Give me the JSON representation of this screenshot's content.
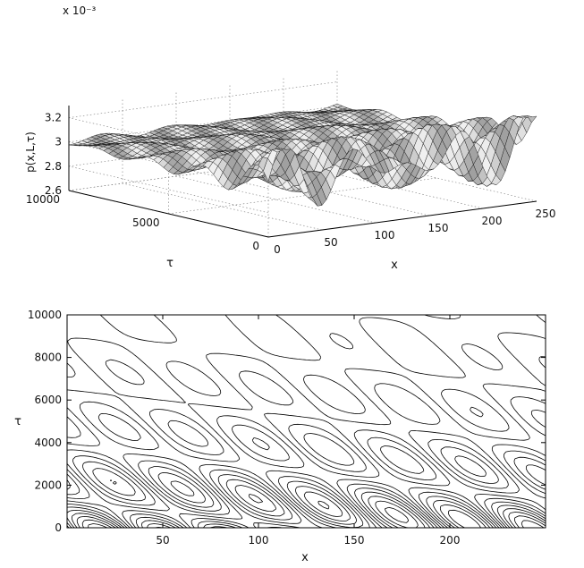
{
  "chart_data": [
    {
      "type": "surface",
      "panel": "top",
      "title": "",
      "zlabel": "p(x,L,τ)",
      "xlabel": "x",
      "ylabel": "τ",
      "scale_note": "x 10⁻³",
      "xticks": [
        "0",
        "50",
        "100",
        "150",
        "200",
        "250"
      ],
      "yticks": [
        "0",
        "5000",
        "10000"
      ],
      "zticks": [
        "2.6",
        "2.8",
        "3",
        "3.2"
      ],
      "xlim": [
        0,
        250
      ],
      "ylim": [
        0,
        10000
      ],
      "zlim": [
        2.6,
        3.3
      ],
      "z_scale": 0.001,
      "surface_description": "3D mesh that is nearly flat around 3.1e-3 at large tau and develops oscillations in x (period about 65) that grow as tau decreases, reaching roughly 2.6e-3 to 3.3e-3 near tau = 0"
    },
    {
      "type": "contour",
      "panel": "bottom",
      "title": "",
      "xlabel": "x",
      "ylabel": "τ",
      "xticks": [
        "50",
        "100",
        "150",
        "200"
      ],
      "yticks": [
        "0",
        "2000",
        "4000",
        "6000",
        "8000",
        "10000"
      ],
      "xlim": [
        0,
        250
      ],
      "ylim": [
        0,
        10000
      ],
      "levels": 14
    }
  ]
}
